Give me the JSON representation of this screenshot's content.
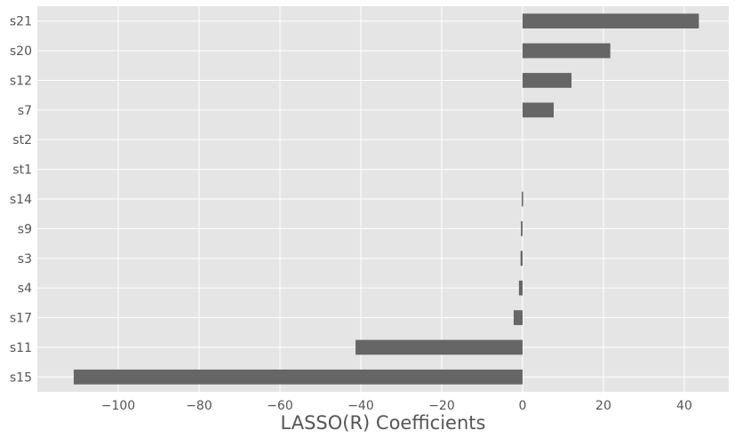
{
  "chart_data": {
    "type": "bar",
    "orientation": "horizontal",
    "categories": [
      "s15",
      "s11",
      "s17",
      "s4",
      "s3",
      "s9",
      "s14",
      "st1",
      "st2",
      "s7",
      "s12",
      "s20",
      "s21"
    ],
    "values": [
      -111.0,
      -41.3,
      -2.2,
      -0.9,
      -0.5,
      -0.4,
      -0.2,
      0.0,
      0.0,
      7.7,
      12.1,
      21.7,
      43.6
    ],
    "xlabel": "LASSO(R) Coefficients",
    "ylabel": "",
    "title": "",
    "xlim": [
      -120,
      51
    ],
    "xticks": [
      -100,
      -80,
      -60,
      -40,
      -20,
      0,
      20,
      40
    ],
    "xtick_labels": [
      "−100",
      "−80",
      "−60",
      "−40",
      "−20",
      "0",
      "20",
      "40"
    ],
    "grid": true,
    "legend": "none"
  },
  "colors": {
    "background": "#e5e5e5",
    "bar": "#666666",
    "grid": "#ffffff",
    "text": "#555555"
  }
}
